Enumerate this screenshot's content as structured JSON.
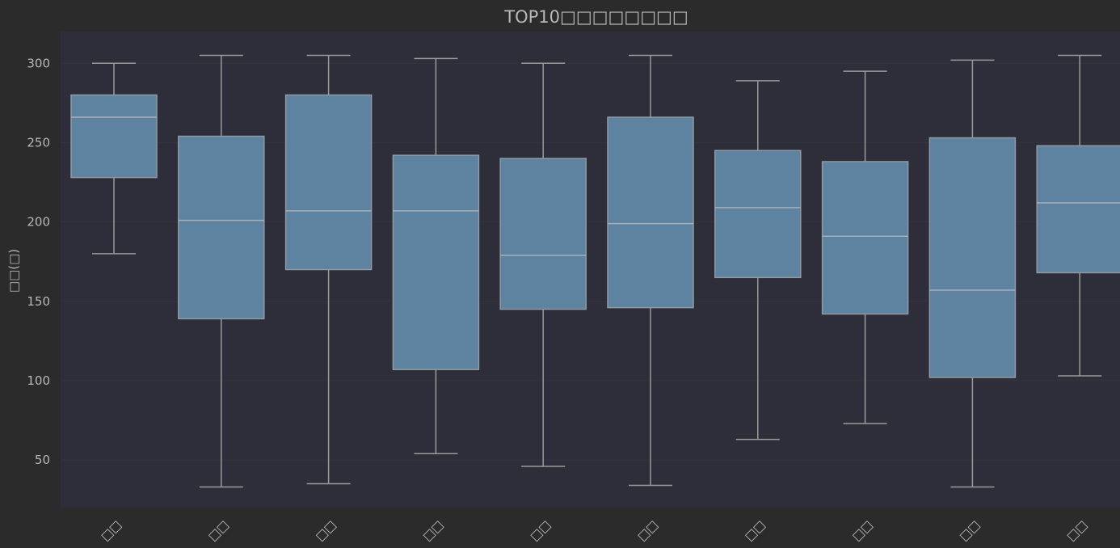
{
  "chart_data": {
    "type": "box",
    "title": "TOP10□□□□□□□□",
    "xlabel": "□□",
    "ylabel": "□□(□)",
    "ylim": [
      20,
      320
    ],
    "yticks": [
      50,
      100,
      150,
      200,
      250,
      300
    ],
    "grid": true,
    "categories": [
      "□□",
      "□□",
      "□□",
      "□□",
      "□□",
      "□□",
      "□□",
      "□□",
      "□□",
      "□□"
    ],
    "boxes": [
      {
        "min": 180,
        "q1": 228,
        "median": 266,
        "q3": 280,
        "max": 300
      },
      {
        "min": 33,
        "q1": 139,
        "median": 201,
        "q3": 254,
        "max": 305
      },
      {
        "min": 35,
        "q1": 170,
        "median": 207,
        "q3": 280,
        "max": 305
      },
      {
        "min": 54,
        "q1": 107,
        "median": 207,
        "q3": 242,
        "max": 303
      },
      {
        "min": 46,
        "q1": 145,
        "median": 179,
        "q3": 240,
        "max": 300
      },
      {
        "min": 34,
        "q1": 146,
        "median": 199,
        "q3": 266,
        "max": 305
      },
      {
        "min": 63,
        "q1": 165,
        "median": 209,
        "q3": 245,
        "max": 289
      },
      {
        "min": 73,
        "q1": 142,
        "median": 191,
        "q3": 238,
        "max": 295
      },
      {
        "min": 33,
        "q1": 102,
        "median": 157,
        "q3": 253,
        "max": 302
      },
      {
        "min": 103,
        "q1": 168,
        "median": 212,
        "q3": 248,
        "max": 305
      }
    ],
    "colors": {
      "page_background": "#2b2b2b",
      "plot_background": "#2e2e3a",
      "box_fill": "#5d83a0",
      "box_stroke": "#8f9aa3",
      "whisker": "#9a9a9a",
      "median": "#a8b0b6",
      "grid": "#34343f",
      "text": "#b8b8b8"
    }
  }
}
